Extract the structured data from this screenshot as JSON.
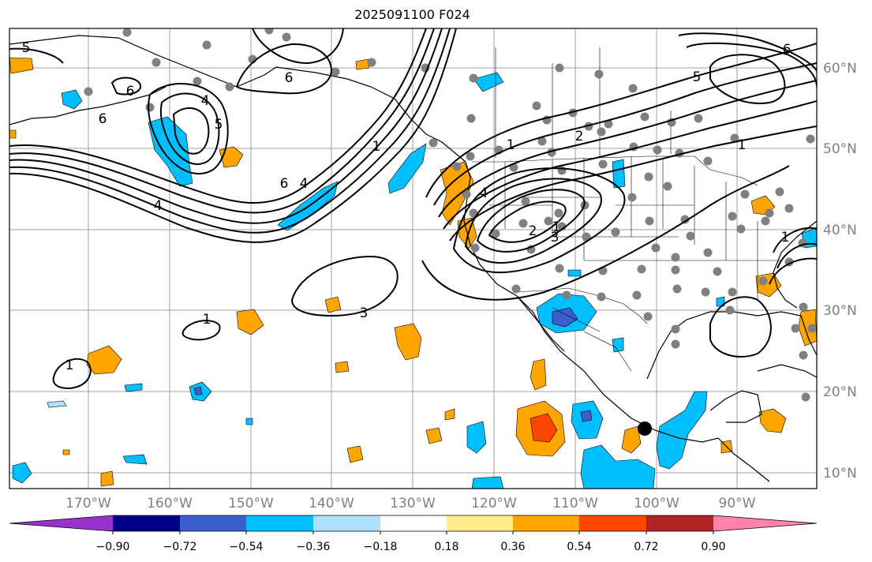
{
  "title": "2025091100 F024",
  "map": {
    "longitude_labels": [
      "170°W",
      "160°W",
      "150°W",
      "140°W",
      "130°W",
      "120°W",
      "110°W",
      "100°W",
      "90°W"
    ],
    "latitude_labels": [
      "60°N",
      "50°N",
      "40°N",
      "30°N",
      "20°N",
      "10°N"
    ],
    "contour_labels": [
      "5",
      "6",
      "6",
      "6",
      "5",
      "4",
      "1",
      "6",
      "4",
      "4",
      "1",
      "2",
      "4",
      "3",
      "1",
      "1",
      "1",
      "2",
      "1",
      "5",
      "3",
      "6",
      "1"
    ]
  },
  "colorbar": {
    "tick_labels": [
      "−0.90",
      "−0.72",
      "−0.54",
      "−0.36",
      "−0.18",
      "0.18",
      "0.36",
      "0.54",
      "0.72",
      "0.90"
    ],
    "colors": [
      "#9932CC",
      "#00008B",
      "#3A5FCD",
      "#00BFFF",
      "#B0E2FF",
      "#FFFFFF",
      "#FFEC8B",
      "#FFA500",
      "#FF4500",
      "#B22222",
      "#FF82AB"
    ]
  },
  "colors": {
    "grid": "#A0A0A0",
    "contour": "#000000",
    "station": "#808080",
    "marker": "#000000"
  }
}
